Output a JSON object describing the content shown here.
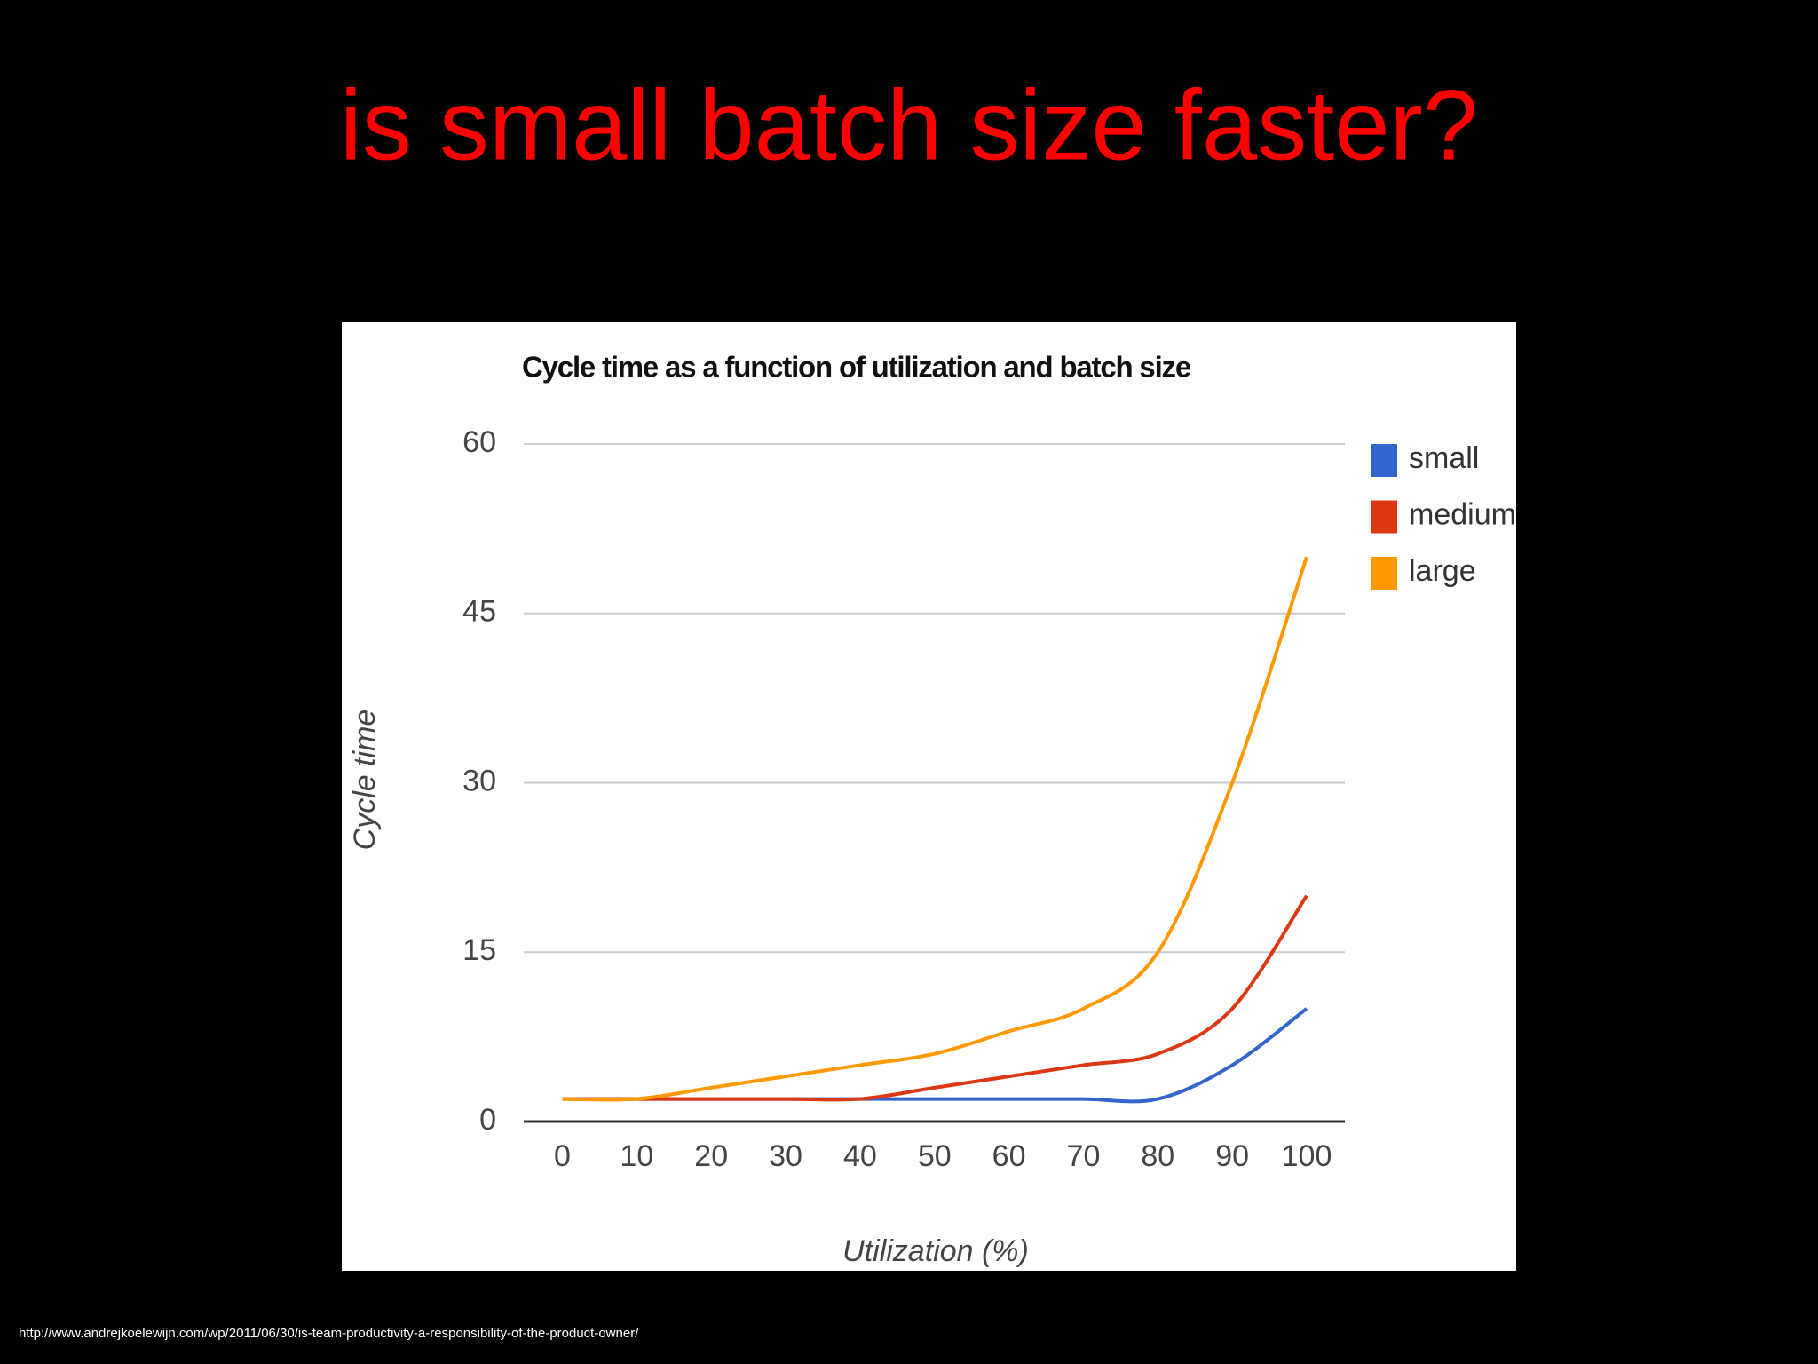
{
  "slide_title": "is small batch size faster?",
  "footer": "http://www.andrejkoelewijn.com/wp/2011/06/30/is-team-productivity-a-responsibility-of-the-product-owner/",
  "chart_data": {
    "type": "line",
    "title": "Cycle time as a function of utilization and batch size",
    "x_label": "Utilization (%)",
    "y_label": "Cycle time",
    "x": [
      0,
      10,
      20,
      30,
      40,
      50,
      60,
      70,
      80,
      90,
      100
    ],
    "series": [
      {
        "name": "small",
        "color": "#3366cc",
        "values": [
          2,
          2,
          2,
          2,
          2,
          2,
          2,
          2,
          2,
          5,
          10
        ]
      },
      {
        "name": "medium",
        "color": "#dc3912",
        "values": [
          2,
          2,
          2,
          2,
          2,
          3,
          4,
          5,
          6,
          10,
          20
        ]
      },
      {
        "name": "large",
        "color": "#ff9900",
        "values": [
          2,
          2,
          3,
          4,
          5,
          6,
          8,
          10,
          15,
          30,
          50
        ]
      }
    ],
    "xlim": [
      0,
      100
    ],
    "xticks": [
      0,
      10,
      20,
      30,
      40,
      50,
      60,
      70,
      80,
      90,
      100
    ],
    "ylim": [
      0,
      60
    ],
    "yticks": [
      0,
      15,
      30,
      45,
      60
    ],
    "grid": true,
    "legend": "right"
  }
}
